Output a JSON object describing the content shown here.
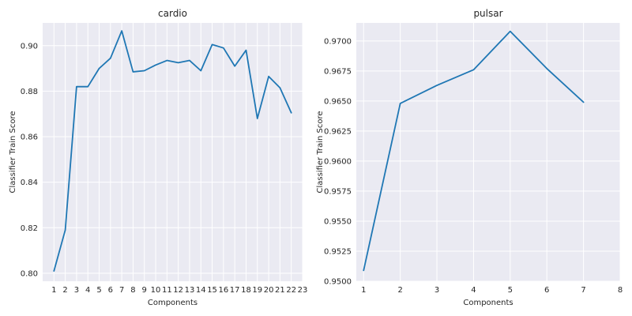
{
  "chart_data": [
    {
      "type": "line",
      "title": "cardio",
      "xlabel": "Components",
      "ylabel": "Classifier Train Score",
      "xlim": [
        0,
        23
      ],
      "ylim": [
        0.7965,
        0.91
      ],
      "xticks": [
        1,
        2,
        3,
        4,
        5,
        6,
        7,
        8,
        9,
        10,
        11,
        12,
        13,
        14,
        15,
        16,
        17,
        18,
        19,
        20,
        21,
        22,
        23
      ],
      "yticks": [
        0.8,
        0.82,
        0.84,
        0.86,
        0.88,
        0.9
      ],
      "ytick_labels": [
        "0.80",
        "0.82",
        "0.84",
        "0.86",
        "0.88",
        "0.90"
      ],
      "grid": true,
      "series": [
        {
          "color": "#1f77b4",
          "x": [
            1,
            2,
            3,
            4,
            5,
            6,
            7,
            8,
            9,
            10,
            11,
            12,
            13,
            14,
            15,
            16,
            17,
            18,
            19,
            20,
            21,
            22
          ],
          "y": [
            0.801,
            0.819,
            0.882,
            0.882,
            0.89,
            0.8945,
            0.9065,
            0.8885,
            0.889,
            0.8915,
            0.8935,
            0.8925,
            0.8935,
            0.889,
            0.9005,
            0.899,
            0.891,
            0.898,
            0.868,
            0.8865,
            0.8815,
            0.8705
          ]
        }
      ]
    },
    {
      "type": "line",
      "title": "pulsar",
      "xlabel": "Components",
      "ylabel": "Classifier Train Score",
      "xlim": [
        0.8,
        8
      ],
      "ylim": [
        0.95,
        0.9715
      ],
      "xticks": [
        1,
        2,
        3,
        4,
        5,
        6,
        7,
        8
      ],
      "yticks": [
        0.95,
        0.9525,
        0.955,
        0.9575,
        0.96,
        0.9625,
        0.965,
        0.9675,
        0.97
      ],
      "ytick_labels": [
        "0.9500",
        "0.9525",
        "0.9550",
        "0.9575",
        "0.9600",
        "0.9625",
        "0.9650",
        "0.9675",
        "0.9700"
      ],
      "grid": true,
      "series": [
        {
          "color": "#1f77b4",
          "x": [
            1,
            2,
            3,
            4,
            5,
            6,
            7
          ],
          "y": [
            0.9509,
            0.9648,
            0.9663,
            0.9676,
            0.9708,
            0.9677,
            0.9649
          ]
        }
      ]
    }
  ]
}
